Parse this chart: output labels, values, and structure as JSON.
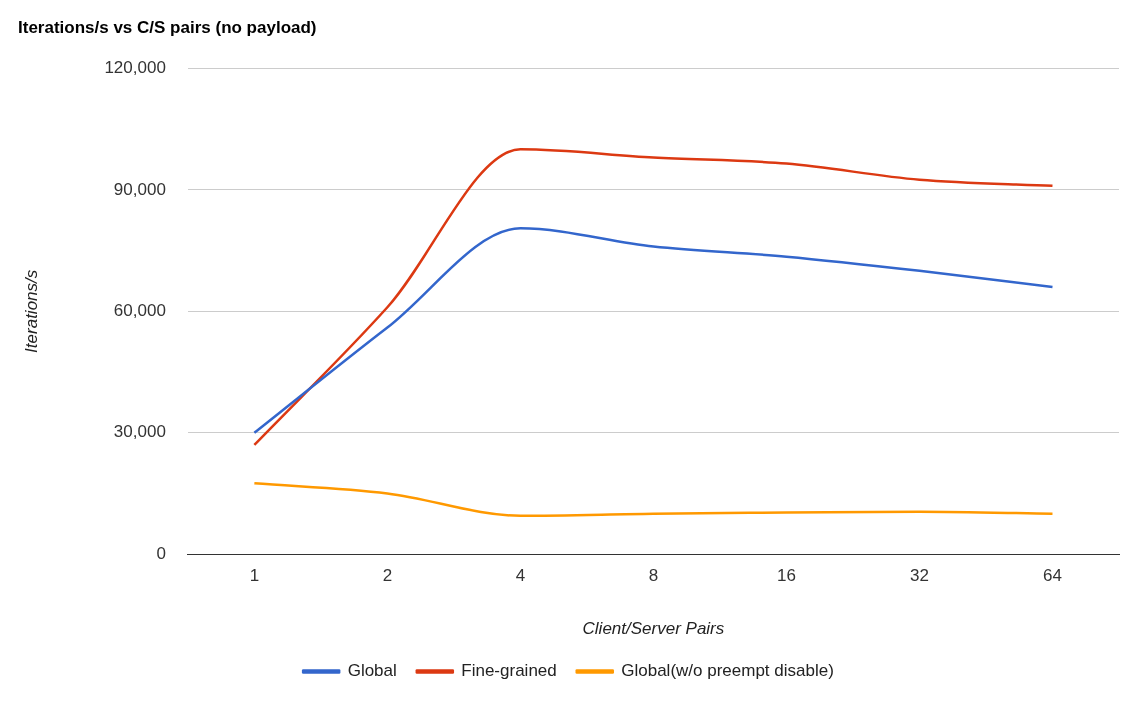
{
  "chart_data": {
    "type": "line",
    "title": "Iterations/s vs C/S pairs (no payload)",
    "xlabel": "Client/Server Pairs",
    "ylabel": "Iterations/s",
    "categories": [
      "1",
      "2",
      "4",
      "8",
      "16",
      "32",
      "64"
    ],
    "series": [
      {
        "name": "Global",
        "color": "#3366cc",
        "values": [
          30000,
          56000,
          80500,
          76000,
          73500,
          70000,
          66000
        ]
      },
      {
        "name": "Fine-grained",
        "color": "#dc3912",
        "values": [
          27000,
          61000,
          100000,
          98000,
          96500,
          92500,
          91000
        ]
      },
      {
        "name": "Global(w/o preempt disable)",
        "color": "#ff9900",
        "values": [
          17500,
          15000,
          9500,
          10000,
          10300,
          10500,
          10000
        ]
      }
    ],
    "ylim": [
      0,
      120000
    ],
    "yticks": [
      {
        "value": 0,
        "label": "0"
      },
      {
        "value": 30000,
        "label": "30,000"
      },
      {
        "value": 60000,
        "label": "60,000"
      },
      {
        "value": 90000,
        "label": "90,000"
      },
      {
        "value": 120000,
        "label": "120,000"
      }
    ],
    "grid": "y",
    "legend": "bottom",
    "marker": "none",
    "line_style": "solid"
  }
}
